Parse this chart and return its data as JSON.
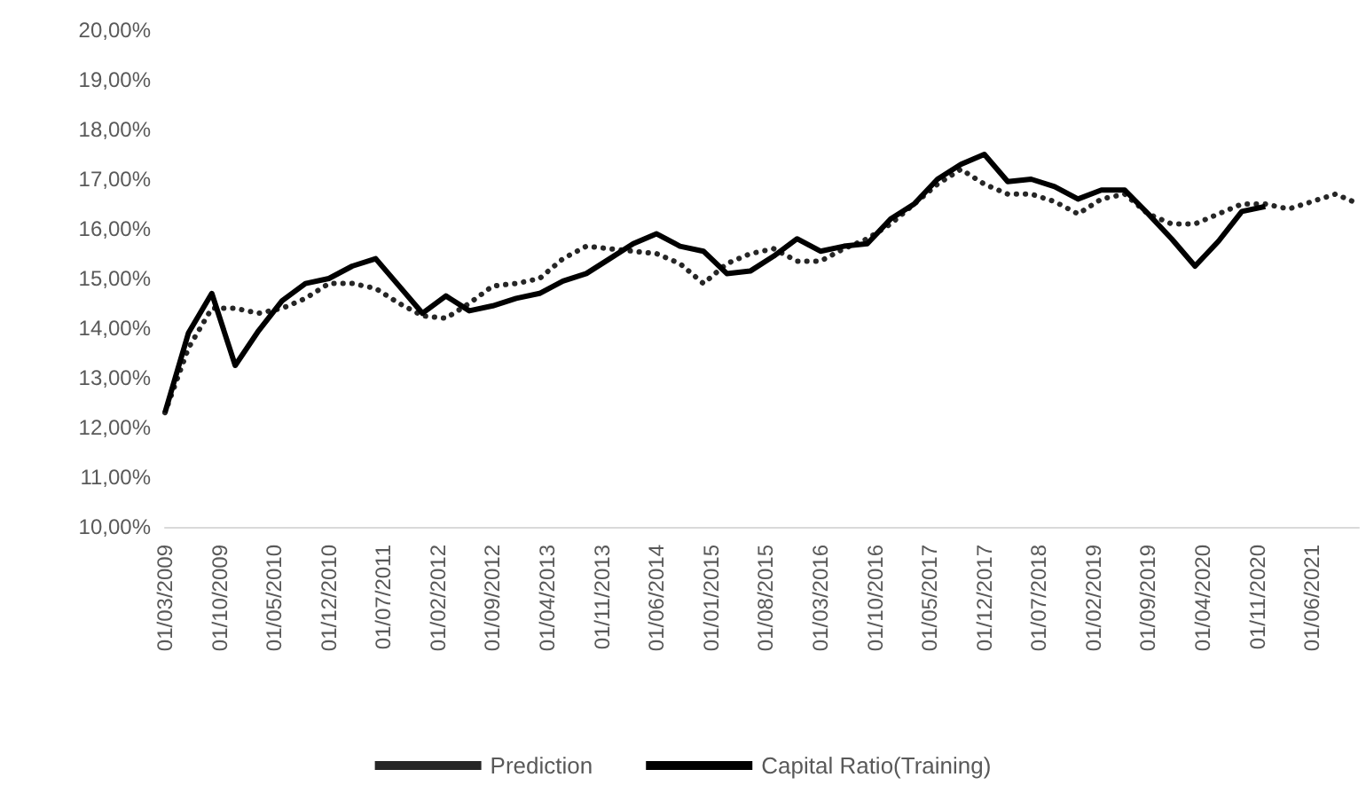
{
  "chart_data": {
    "type": "line",
    "x": [
      "2009-03",
      "2009-06",
      "2009-09",
      "2009-12",
      "2010-03",
      "2010-06",
      "2010-09",
      "2010-12",
      "2011-03",
      "2011-06",
      "2011-09",
      "2011-12",
      "2012-03",
      "2012-06",
      "2012-09",
      "2012-12",
      "2013-03",
      "2013-06",
      "2013-09",
      "2013-12",
      "2014-03",
      "2014-06",
      "2014-09",
      "2014-12",
      "2015-03",
      "2015-06",
      "2015-09",
      "2015-12",
      "2016-03",
      "2016-06",
      "2016-09",
      "2016-12",
      "2017-03",
      "2017-06",
      "2017-09",
      "2017-12",
      "2018-03",
      "2018-06",
      "2018-09",
      "2018-12",
      "2019-03",
      "2019-06",
      "2019-09",
      "2019-12",
      "2020-03",
      "2020-06",
      "2020-09",
      "2020-12",
      "2021-03",
      "2021-06",
      "2021-09",
      "2021-12"
    ],
    "series": [
      {
        "name": "Prediction",
        "color": "#262626",
        "line_style": "dotted",
        "values": [
          12.3,
          13.6,
          14.4,
          14.4,
          14.3,
          14.4,
          14.6,
          14.9,
          14.9,
          14.8,
          14.5,
          14.25,
          14.2,
          14.5,
          14.85,
          14.9,
          15.0,
          15.4,
          15.65,
          15.6,
          15.55,
          15.5,
          15.3,
          14.9,
          15.3,
          15.5,
          15.6,
          15.35,
          15.35,
          15.6,
          15.8,
          16.1,
          16.5,
          16.9,
          17.2,
          16.9,
          16.7,
          16.7,
          16.55,
          16.3,
          16.6,
          16.7,
          16.3,
          16.1,
          16.1,
          16.3,
          16.5,
          16.5,
          16.4,
          16.55,
          16.7,
          16.5
        ]
      },
      {
        "name": "Capital Ratio(Training)",
        "color": "#000000",
        "line_style": "solid",
        "values": [
          12.3,
          13.9,
          14.7,
          13.25,
          13.95,
          14.55,
          14.9,
          15.0,
          15.25,
          15.4,
          14.85,
          14.3,
          14.65,
          14.35,
          14.45,
          14.6,
          14.7,
          14.95,
          15.1,
          15.4,
          15.7,
          15.9,
          15.65,
          15.55,
          15.1,
          15.15,
          15.45,
          15.8,
          15.55,
          15.65,
          15.7,
          16.2,
          16.5,
          17.0,
          17.3,
          17.5,
          16.95,
          17.0,
          16.85,
          16.6,
          16.78,
          16.78,
          16.3,
          15.8,
          15.25,
          15.75,
          16.35,
          16.45,
          null,
          null,
          null,
          null
        ]
      }
    ],
    "xlim": [
      "2009-03",
      "2021-12"
    ],
    "xticks": [
      {
        "value": "2009-03",
        "label": "01/03/2009"
      },
      {
        "value": "2009-10",
        "label": "01/10/2009"
      },
      {
        "value": "2010-05",
        "label": "01/05/2010"
      },
      {
        "value": "2010-12",
        "label": "01/12/2010"
      },
      {
        "value": "2011-07",
        "label": "01/07/2011"
      },
      {
        "value": "2012-02",
        "label": "01/02/2012"
      },
      {
        "value": "2012-09",
        "label": "01/09/2012"
      },
      {
        "value": "2013-04",
        "label": "01/04/2013"
      },
      {
        "value": "2013-11",
        "label": "01/11/2013"
      },
      {
        "value": "2014-06",
        "label": "01/06/2014"
      },
      {
        "value": "2015-01",
        "label": "01/01/2015"
      },
      {
        "value": "2015-08",
        "label": "01/08/2015"
      },
      {
        "value": "2016-03",
        "label": "01/03/2016"
      },
      {
        "value": "2016-10",
        "label": "01/10/2016"
      },
      {
        "value": "2017-05",
        "label": "01/05/2017"
      },
      {
        "value": "2017-12",
        "label": "01/12/2017"
      },
      {
        "value": "2018-07",
        "label": "01/07/2018"
      },
      {
        "value": "2019-02",
        "label": "01/02/2019"
      },
      {
        "value": "2019-09",
        "label": "01/09/2019"
      },
      {
        "value": "2020-04",
        "label": "01/04/2020"
      },
      {
        "value": "2020-11",
        "label": "01/11/2020"
      },
      {
        "value": "2021-06",
        "label": "01/06/2021"
      }
    ],
    "ylim": [
      10,
      20
    ],
    "yticks": [
      {
        "value": 10,
        "label": "10,00%"
      },
      {
        "value": 11,
        "label": "11,00%"
      },
      {
        "value": 12,
        "label": "12,00%"
      },
      {
        "value": 13,
        "label": "13,00%"
      },
      {
        "value": 14,
        "label": "14,00%"
      },
      {
        "value": 15,
        "label": "15,00%"
      },
      {
        "value": 16,
        "label": "16,00%"
      },
      {
        "value": 17,
        "label": "17,00%"
      },
      {
        "value": 18,
        "label": "18,00%"
      },
      {
        "value": 19,
        "label": "19,00%"
      },
      {
        "value": 20,
        "label": "20,00%"
      }
    ],
    "grid": false,
    "legend": "bottom",
    "marker": "none"
  }
}
